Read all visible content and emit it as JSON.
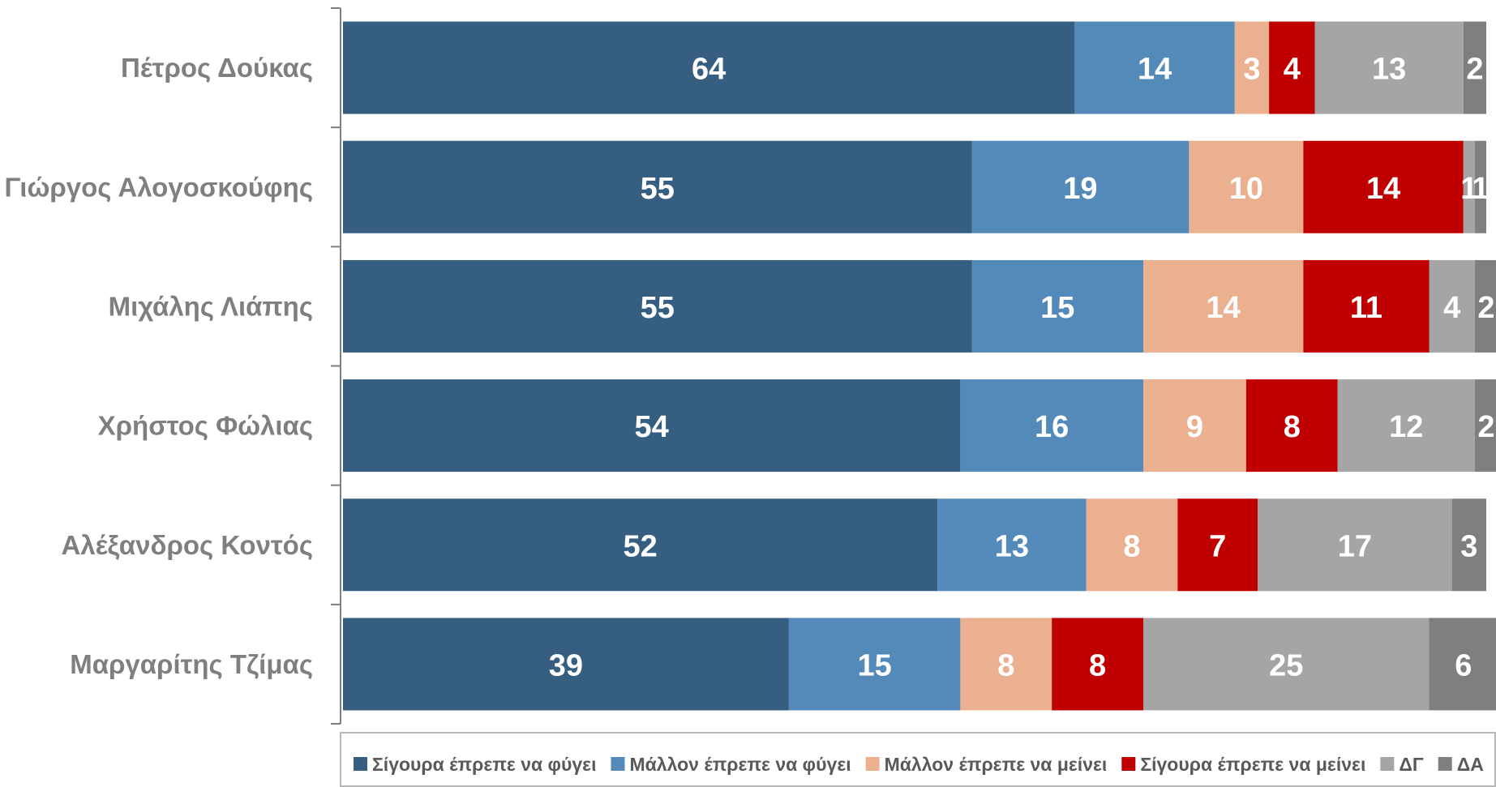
{
  "chart_data": {
    "type": "bar",
    "orientation": "horizontal",
    "stacked": true,
    "categories": [
      "Πέτρος Δούκας",
      "Γιώργος Αλογοσκούφης",
      "Μιχάλης Λιάπης",
      "Χρήστος Φώλιας",
      "Αλέξανδρος Κοντός",
      "Μαργαρίτης Τζίμας"
    ],
    "series": [
      {
        "name": "Σίγουρα έπρεπε να φύγει",
        "color": "#355e80",
        "label_color": "#ffffff",
        "values": [
          64,
          55,
          55,
          54,
          52,
          39
        ]
      },
      {
        "name": "Μάλλον έπρεπε να φύγει",
        "color": "#538ab9",
        "label_color": "#ffffff",
        "values": [
          14,
          19,
          15,
          16,
          13,
          15
        ]
      },
      {
        "name": "Μάλλον έπρεπε να μείνει",
        "color": "#ebb090",
        "label_color": "#ffffff",
        "values": [
          3,
          10,
          14,
          9,
          8,
          8
        ]
      },
      {
        "name": "Σίγουρα έπρεπε να μείνει",
        "color": "#c00000",
        "label_color": "#ffffff",
        "values": [
          4,
          14,
          11,
          8,
          7,
          8
        ]
      },
      {
        "name": "ΔΓ",
        "color": "#a5a5a5",
        "label_color": "#ffffff",
        "values": [
          13,
          1,
          4,
          12,
          17,
          25
        ]
      },
      {
        "name": "ΔΑ",
        "color": "#7f7f7f",
        "label_color": "#ffffff",
        "values": [
          2,
          1,
          2,
          2,
          3,
          6
        ]
      }
    ],
    "xlim": [
      0,
      100
    ],
    "grid": false,
    "legend_position": "bottom",
    "title": "",
    "xlabel": "",
    "ylabel": ""
  }
}
